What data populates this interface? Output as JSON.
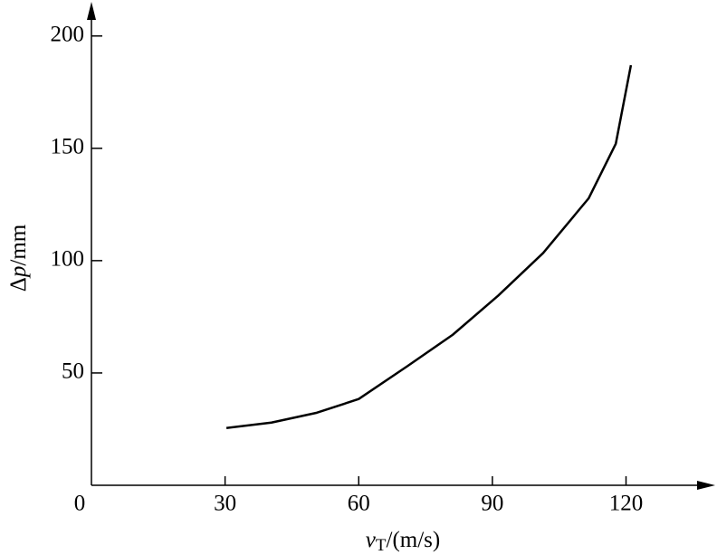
{
  "chart_data": {
    "type": "line",
    "x_label": {
      "symbol": "v",
      "subscript": "T",
      "unit": "/(m/s)"
    },
    "y_label": {
      "prefix": "Δ",
      "symbol": "p",
      "unit": "/mm"
    },
    "x": [
      30.3,
      40.4,
      50.6,
      60,
      70.9,
      81.1,
      91.3,
      101.4,
      111.6,
      117.7,
      121.1
    ],
    "series": [
      {
        "color": "#000000",
        "values": [
          25.5,
          27.9,
          32.3,
          38.4,
          53,
          67,
          84.4,
          103.4,
          127.7,
          152,
          187
        ]
      }
    ],
    "xlim": [
      0,
      139
    ],
    "ylim": [
      0,
      214
    ],
    "xticks": [
      0,
      30,
      60,
      90,
      120
    ],
    "yticks": [
      50,
      100,
      150,
      200
    ]
  }
}
